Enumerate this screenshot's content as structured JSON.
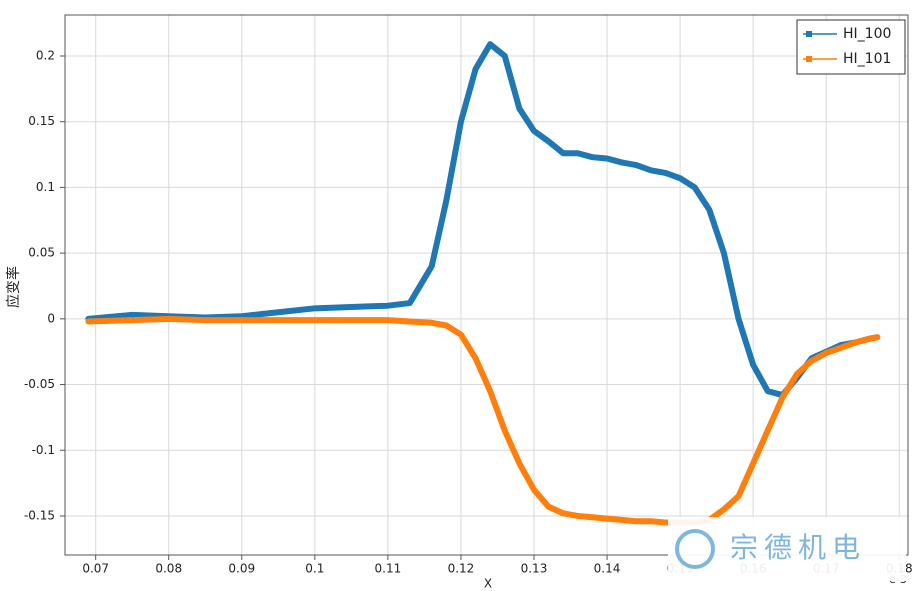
{
  "chart_data": {
    "type": "line",
    "xlabel": "X",
    "ylabel": "应变率",
    "x_offset_label": "e-3",
    "watermark": "宗德机电",
    "x": [
      0.069,
      0.075,
      0.08,
      0.085,
      0.09,
      0.095,
      0.1,
      0.105,
      0.11,
      0.113,
      0.116,
      0.118,
      0.12,
      0.122,
      0.124,
      0.126,
      0.128,
      0.13,
      0.132,
      0.134,
      0.136,
      0.138,
      0.14,
      0.142,
      0.144,
      0.146,
      0.148,
      0.15,
      0.152,
      0.154,
      0.156,
      0.158,
      0.16,
      0.162,
      0.164,
      0.166,
      0.168,
      0.17,
      0.172,
      0.174,
      0.176,
      0.177
    ],
    "series": [
      {
        "name": "HI_100",
        "color": "#1f77b4",
        "values": [
          0,
          0.003,
          0.002,
          0.001,
          0.002,
          0.005,
          0.008,
          0.009,
          0.01,
          0.012,
          0.04,
          0.09,
          0.15,
          0.19,
          0.209,
          0.2,
          0.16,
          0.143,
          0.135,
          0.126,
          0.126,
          0.123,
          0.122,
          0.119,
          0.117,
          0.113,
          0.111,
          0.107,
          0.1,
          0.083,
          0.05,
          0.0,
          -0.035,
          -0.055,
          -0.058,
          -0.045,
          -0.03,
          -0.025,
          -0.02,
          -0.018,
          -0.015,
          -0.014
        ]
      },
      {
        "name": "HI_101",
        "color": "#ff7f0e",
        "values": [
          -0.002,
          -0.001,
          0,
          -0.001,
          -0.001,
          -0.001,
          -0.001,
          -0.001,
          -0.001,
          -0.002,
          -0.003,
          -0.005,
          -0.012,
          -0.03,
          -0.055,
          -0.085,
          -0.11,
          -0.13,
          -0.143,
          -0.148,
          -0.15,
          -0.151,
          -0.152,
          -0.153,
          -0.154,
          -0.154,
          -0.155,
          -0.155,
          -0.155,
          -0.153,
          -0.145,
          -0.135,
          -0.11,
          -0.085,
          -0.06,
          -0.042,
          -0.032,
          -0.026,
          -0.022,
          -0.018,
          -0.015,
          -0.014
        ]
      }
    ],
    "xlim": [
      0.0658,
      0.1812
    ],
    "xticks": [
      0.07,
      0.08,
      0.09,
      0.1,
      0.11,
      0.12,
      0.13,
      0.14,
      0.15,
      0.16,
      0.17,
      0.18
    ],
    "ylim": [
      -0.1797,
      0.2312
    ],
    "yticks": [
      -0.15,
      -0.1,
      -0.05,
      0,
      0.05,
      0.1,
      0.15,
      0.2
    ],
    "grid": true,
    "legend": "top-right"
  }
}
